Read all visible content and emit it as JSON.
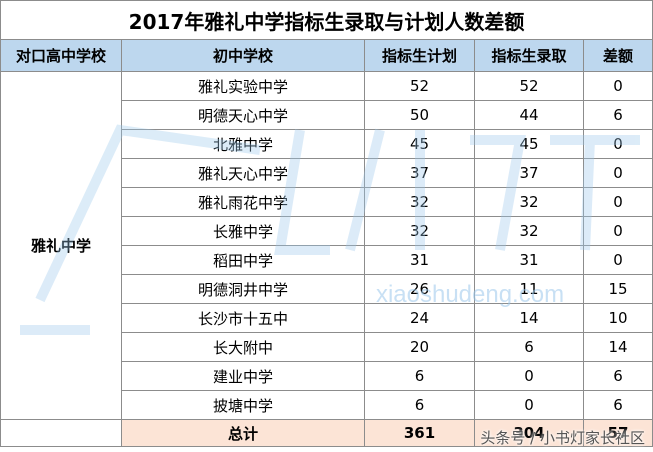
{
  "title": "2017年雅礼中学指标生录取与计划人数差额",
  "headers": {
    "high_school": "对口高中学校",
    "middle_school": "初中学校",
    "plan": "指标生计划",
    "admitted": "指标生录取",
    "diff": "差额"
  },
  "high_school_name": "雅礼中学",
  "rows": [
    {
      "school": "雅礼实验中学",
      "plan": "52",
      "admitted": "52",
      "diff": "0"
    },
    {
      "school": "明德天心中学",
      "plan": "50",
      "admitted": "44",
      "diff": "6"
    },
    {
      "school": "北雅中学",
      "plan": "45",
      "admitted": "45",
      "diff": "0"
    },
    {
      "school": "雅礼天心中学",
      "plan": "37",
      "admitted": "37",
      "diff": "0"
    },
    {
      "school": "雅礼雨花中学",
      "plan": "32",
      "admitted": "32",
      "diff": "0"
    },
    {
      "school": "长雅中学",
      "plan": "32",
      "admitted": "32",
      "diff": "0"
    },
    {
      "school": "稻田中学",
      "plan": "31",
      "admitted": "31",
      "diff": "0"
    },
    {
      "school": "明德洞井中学",
      "plan": "26",
      "admitted": "11",
      "diff": "15"
    },
    {
      "school": "长沙市十五中",
      "plan": "24",
      "admitted": "14",
      "diff": "10"
    },
    {
      "school": "长大附中",
      "plan": "20",
      "admitted": "6",
      "diff": "14"
    },
    {
      "school": "建业中学",
      "plan": "6",
      "admitted": "0",
      "diff": "6"
    },
    {
      "school": "披塘中学",
      "plan": "6",
      "admitted": "0",
      "diff": "6"
    }
  ],
  "total": {
    "label": "总计",
    "plan": "361",
    "admitted": "304",
    "diff": "57"
  },
  "watermark": {
    "text": "xiaoshudeng.com",
    "color": "#9cc8ec"
  },
  "credit": "头条号 / 小书灯家长社区"
}
